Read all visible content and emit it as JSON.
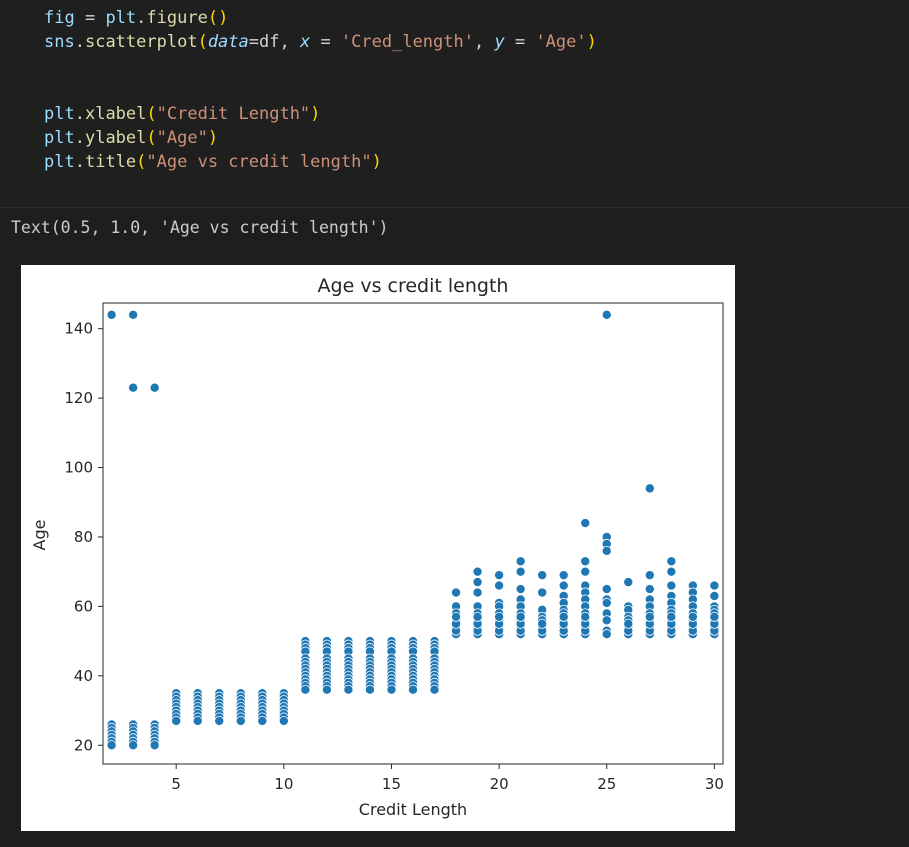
{
  "code": {
    "lines": [
      {
        "parts": [
          [
            "var",
            "fig"
          ],
          [
            "punc",
            " = "
          ],
          [
            "var",
            "plt"
          ],
          [
            "punc",
            "."
          ],
          [
            "fn",
            "figure"
          ],
          [
            "paren",
            "()"
          ]
        ]
      },
      {
        "parts": [
          [
            "var",
            "sns"
          ],
          [
            "punc",
            "."
          ],
          [
            "fn",
            "scatterplot"
          ],
          [
            "paren",
            "("
          ],
          [
            "kw",
            "data"
          ],
          [
            "punc",
            "=df, "
          ],
          [
            "kw",
            "x"
          ],
          [
            "punc",
            " = "
          ],
          [
            "str",
            "'Cred_length'"
          ],
          [
            "punc",
            ", "
          ],
          [
            "kw",
            "y"
          ],
          [
            "punc",
            " = "
          ],
          [
            "str",
            "'Age'"
          ],
          [
            "paren",
            ")"
          ]
        ]
      },
      {
        "parts": [
          [
            "var",
            "plt"
          ],
          [
            "punc",
            "."
          ],
          [
            "fn",
            "xlabel"
          ],
          [
            "paren",
            "("
          ],
          [
            "str",
            "\"Credit Length\""
          ],
          [
            "paren",
            ")"
          ]
        ]
      },
      {
        "parts": [
          [
            "var",
            "plt"
          ],
          [
            "punc",
            "."
          ],
          [
            "fn",
            "ylabel"
          ],
          [
            "paren",
            "("
          ],
          [
            "str",
            "\"Age\""
          ],
          [
            "paren",
            ")"
          ]
        ]
      },
      {
        "parts": [
          [
            "var",
            "plt"
          ],
          [
            "punc",
            "."
          ],
          [
            "fn",
            "title"
          ],
          [
            "paren",
            "("
          ],
          [
            "str",
            "\"Age vs credit length\""
          ],
          [
            "paren",
            ")"
          ]
        ]
      }
    ]
  },
  "output": {
    "text": "Text(0.5, 1.0, 'Age vs credit length')"
  },
  "colors": {
    "marker": "#1f77b4",
    "background": "#1e1e1e",
    "figure": "#ffffff"
  },
  "chart_data": {
    "type": "scatter",
    "title": "Age vs credit length",
    "xlabel": "Credit Length",
    "ylabel": "Age",
    "xlim": [
      1.6,
      30.4
    ],
    "ylim": [
      14.6,
      147.4
    ],
    "xticks": [
      5,
      10,
      15,
      20,
      25,
      30
    ],
    "yticks": [
      20,
      40,
      60,
      80,
      100,
      120,
      140
    ],
    "grid": false,
    "points": [
      [
        2,
        144
      ],
      [
        3,
        144
      ],
      [
        3,
        123
      ],
      [
        4,
        123
      ],
      [
        25,
        144
      ],
      [
        27,
        94
      ],
      [
        24,
        84
      ],
      [
        25,
        80
      ],
      [
        25,
        78
      ],
      [
        25,
        76
      ],
      [
        24,
        73
      ],
      [
        21,
        73
      ],
      [
        28,
        73
      ],
      [
        24,
        70
      ],
      [
        21,
        70
      ],
      [
        19,
        70
      ],
      [
        28,
        70
      ],
      [
        20,
        69
      ],
      [
        22,
        69
      ],
      [
        23,
        69
      ],
      [
        27,
        69
      ],
      [
        19,
        67
      ],
      [
        20,
        66
      ],
      [
        26,
        67
      ],
      [
        29,
        66
      ],
      [
        30,
        66
      ],
      [
        24,
        66
      ],
      [
        25,
        65
      ],
      [
        21,
        65
      ],
      [
        23,
        66
      ],
      [
        28,
        66
      ],
      [
        18,
        64
      ],
      [
        22,
        64
      ],
      [
        27,
        65
      ],
      [
        24,
        64
      ],
      [
        28,
        63
      ],
      [
        29,
        64
      ],
      [
        30,
        63
      ],
      [
        23,
        63
      ],
      [
        26,
        60
      ],
      [
        19,
        64
      ],
      [
        20,
        61
      ],
      [
        23,
        61
      ],
      [
        27,
        62
      ],
      [
        28,
        61
      ],
      [
        29,
        62
      ],
      [
        24,
        62
      ],
      [
        21,
        62
      ],
      [
        25,
        62
      ],
      [
        30,
        60
      ],
      [
        18,
        60
      ],
      [
        19,
        60
      ],
      [
        20,
        60
      ],
      [
        21,
        60
      ],
      [
        22,
        59
      ],
      [
        23,
        59
      ],
      [
        24,
        60
      ],
      [
        25,
        61
      ],
      [
        26,
        59
      ],
      [
        27,
        60
      ],
      [
        28,
        59
      ],
      [
        29,
        60
      ],
      [
        30,
        59
      ],
      [
        18,
        58
      ],
      [
        19,
        58
      ],
      [
        20,
        58
      ],
      [
        21,
        58
      ],
      [
        22,
        57
      ],
      [
        23,
        58
      ],
      [
        24,
        58
      ],
      [
        25,
        58
      ],
      [
        26,
        57
      ],
      [
        27,
        58
      ],
      [
        28,
        58
      ],
      [
        29,
        58
      ],
      [
        30,
        58
      ],
      [
        18,
        56
      ],
      [
        19,
        56
      ],
      [
        20,
        56
      ],
      [
        21,
        56
      ],
      [
        22,
        56
      ],
      [
        23,
        56
      ],
      [
        24,
        56
      ],
      [
        25,
        56
      ],
      [
        26,
        56
      ],
      [
        27,
        56
      ],
      [
        28,
        56
      ],
      [
        29,
        56
      ],
      [
        30,
        56
      ],
      [
        18,
        54
      ],
      [
        19,
        54
      ],
      [
        20,
        54
      ],
      [
        21,
        54
      ],
      [
        22,
        54
      ],
      [
        23,
        54
      ],
      [
        24,
        54
      ],
      [
        25,
        53
      ],
      [
        26,
        54
      ],
      [
        27,
        54
      ],
      [
        28,
        54
      ],
      [
        29,
        54
      ],
      [
        30,
        54
      ],
      [
        18,
        52
      ],
      [
        19,
        52
      ],
      [
        20,
        52
      ],
      [
        21,
        52
      ],
      [
        22,
        52
      ],
      [
        23,
        52
      ],
      [
        24,
        52
      ],
      [
        25,
        52
      ],
      [
        26,
        52
      ],
      [
        27,
        52
      ],
      [
        28,
        52
      ],
      [
        29,
        52
      ],
      [
        30,
        52
      ],
      [
        18,
        53
      ],
      [
        19,
        53
      ],
      [
        20,
        53
      ],
      [
        21,
        53
      ],
      [
        22,
        53
      ],
      [
        23,
        53
      ],
      [
        24,
        53
      ],
      [
        26,
        53
      ],
      [
        27,
        53
      ],
      [
        28,
        53
      ],
      [
        29,
        53
      ],
      [
        30,
        53
      ],
      [
        18,
        55
      ],
      [
        19,
        55
      ],
      [
        20,
        55
      ],
      [
        21,
        55
      ],
      [
        22,
        55
      ],
      [
        23,
        55
      ],
      [
        24,
        55
      ],
      [
        26,
        55
      ],
      [
        27,
        55
      ],
      [
        28,
        55
      ],
      [
        29,
        55
      ],
      [
        30,
        55
      ],
      [
        18,
        57
      ],
      [
        19,
        57
      ],
      [
        20,
        57
      ],
      [
        21,
        57
      ],
      [
        23,
        57
      ],
      [
        24,
        57
      ],
      [
        27,
        57
      ],
      [
        28,
        57
      ],
      [
        29,
        57
      ],
      [
        30,
        57
      ],
      [
        11,
        50
      ],
      [
        12,
        50
      ],
      [
        13,
        50
      ],
      [
        14,
        50
      ],
      [
        15,
        50
      ],
      [
        16,
        50
      ],
      [
        17,
        50
      ],
      [
        11,
        49
      ],
      [
        12,
        49
      ],
      [
        13,
        49
      ],
      [
        14,
        49
      ],
      [
        15,
        49
      ],
      [
        16,
        49
      ],
      [
        17,
        49
      ],
      [
        11,
        48
      ],
      [
        12,
        48
      ],
      [
        13,
        48
      ],
      [
        14,
        48
      ],
      [
        15,
        48
      ],
      [
        16,
        48
      ],
      [
        17,
        48
      ],
      [
        11,
        47
      ],
      [
        12,
        47
      ],
      [
        13,
        47
      ],
      [
        14,
        47
      ],
      [
        15,
        47
      ],
      [
        16,
        47
      ],
      [
        17,
        47
      ],
      [
        11,
        45
      ],
      [
        12,
        45
      ],
      [
        13,
        45
      ],
      [
        14,
        45
      ],
      [
        15,
        45
      ],
      [
        16,
        45
      ],
      [
        17,
        45
      ],
      [
        11,
        44
      ],
      [
        12,
        44
      ],
      [
        13,
        44
      ],
      [
        14,
        44
      ],
      [
        15,
        44
      ],
      [
        16,
        44
      ],
      [
        17,
        44
      ],
      [
        11,
        43
      ],
      [
        12,
        43
      ],
      [
        13,
        43
      ],
      [
        14,
        43
      ],
      [
        15,
        43
      ],
      [
        16,
        43
      ],
      [
        17,
        43
      ],
      [
        11,
        42
      ],
      [
        12,
        42
      ],
      [
        13,
        42
      ],
      [
        14,
        42
      ],
      [
        15,
        42
      ],
      [
        16,
        42
      ],
      [
        17,
        42
      ],
      [
        11,
        41
      ],
      [
        12,
        41
      ],
      [
        13,
        41
      ],
      [
        14,
        41
      ],
      [
        15,
        41
      ],
      [
        16,
        41
      ],
      [
        17,
        41
      ],
      [
        11,
        40
      ],
      [
        12,
        40
      ],
      [
        13,
        40
      ],
      [
        14,
        40
      ],
      [
        15,
        40
      ],
      [
        16,
        40
      ],
      [
        17,
        40
      ],
      [
        11,
        39
      ],
      [
        12,
        39
      ],
      [
        13,
        39
      ],
      [
        14,
        39
      ],
      [
        15,
        39
      ],
      [
        16,
        39
      ],
      [
        17,
        39
      ],
      [
        11,
        38
      ],
      [
        12,
        38
      ],
      [
        13,
        38
      ],
      [
        14,
        38
      ],
      [
        15,
        38
      ],
      [
        16,
        38
      ],
      [
        17,
        38
      ],
      [
        11,
        37
      ],
      [
        12,
        37
      ],
      [
        13,
        37
      ],
      [
        14,
        37
      ],
      [
        15,
        37
      ],
      [
        16,
        37
      ],
      [
        17,
        37
      ],
      [
        11,
        36
      ],
      [
        12,
        36
      ],
      [
        13,
        36
      ],
      [
        14,
        36
      ],
      [
        15,
        36
      ],
      [
        16,
        36
      ],
      [
        17,
        36
      ],
      [
        5,
        35
      ],
      [
        6,
        35
      ],
      [
        7,
        35
      ],
      [
        8,
        35
      ],
      [
        9,
        35
      ],
      [
        10,
        35
      ],
      [
        5,
        34
      ],
      [
        6,
        34
      ],
      [
        7,
        34
      ],
      [
        8,
        34
      ],
      [
        9,
        34
      ],
      [
        10,
        34
      ],
      [
        5,
        33
      ],
      [
        6,
        33
      ],
      [
        7,
        33
      ],
      [
        8,
        33
      ],
      [
        9,
        33
      ],
      [
        10,
        33
      ],
      [
        5,
        32
      ],
      [
        6,
        32
      ],
      [
        7,
        32
      ],
      [
        8,
        32
      ],
      [
        9,
        32
      ],
      [
        10,
        32
      ],
      [
        5,
        31
      ],
      [
        6,
        31
      ],
      [
        7,
        31
      ],
      [
        8,
        31
      ],
      [
        9,
        31
      ],
      [
        10,
        31
      ],
      [
        5,
        30
      ],
      [
        6,
        30
      ],
      [
        7,
        30
      ],
      [
        8,
        30
      ],
      [
        9,
        30
      ],
      [
        10,
        30
      ],
      [
        5,
        29
      ],
      [
        6,
        29
      ],
      [
        7,
        29
      ],
      [
        8,
        29
      ],
      [
        9,
        29
      ],
      [
        10,
        29
      ],
      [
        5,
        28
      ],
      [
        6,
        28
      ],
      [
        7,
        28
      ],
      [
        8,
        28
      ],
      [
        9,
        28
      ],
      [
        10,
        28
      ],
      [
        5,
        27
      ],
      [
        6,
        27
      ],
      [
        7,
        27
      ],
      [
        8,
        27
      ],
      [
        9,
        27
      ],
      [
        10,
        27
      ],
      [
        2,
        26
      ],
      [
        3,
        26
      ],
      [
        4,
        26
      ],
      [
        2,
        25
      ],
      [
        3,
        25
      ],
      [
        4,
        25
      ],
      [
        2,
        24
      ],
      [
        3,
        24
      ],
      [
        4,
        24
      ],
      [
        2,
        23
      ],
      [
        3,
        23
      ],
      [
        4,
        23
      ],
      [
        2,
        22
      ],
      [
        3,
        22
      ],
      [
        4,
        22
      ],
      [
        2,
        21
      ],
      [
        3,
        21
      ],
      [
        4,
        21
      ],
      [
        2,
        20
      ],
      [
        3,
        20
      ],
      [
        4,
        20
      ]
    ]
  }
}
